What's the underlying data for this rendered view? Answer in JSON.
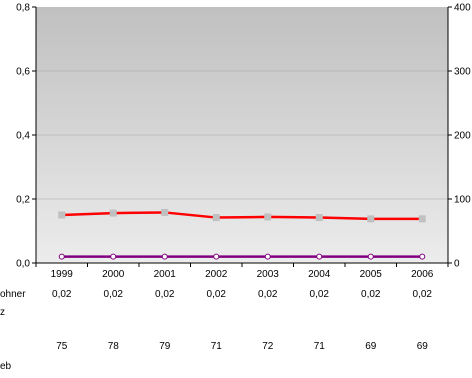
{
  "chart_data": {
    "type": "line",
    "categories": [
      "1999",
      "2000",
      "2001",
      "2002",
      "2003",
      "2004",
      "2005",
      "2006"
    ],
    "left_axis": {
      "ylim": [
        0,
        0.8
      ],
      "ticks": [
        "0,0",
        "0,2",
        "0,4",
        "0,6",
        "0,8"
      ]
    },
    "right_axis": {
      "ylim": [
        0,
        400
      ],
      "ticks": [
        "0",
        "100",
        "200",
        "300",
        "400"
      ]
    },
    "series": [
      {
        "axis": "left",
        "color": "#800080",
        "marker_color": "#ffffff",
        "values": [
          0.02,
          0.02,
          0.02,
          0.02,
          0.02,
          0.02,
          0.02,
          0.02
        ],
        "labels": [
          "0,02",
          "0,02",
          "0,02",
          "0,02",
          "0,02",
          "0,02",
          "0,02",
          "0,02"
        ]
      },
      {
        "axis": "right",
        "color": "#ff0000",
        "marker_color": "#c0c0c0",
        "values": [
          75,
          78,
          79,
          71,
          72,
          71,
          69,
          69
        ],
        "labels": [
          "75",
          "78",
          "79",
          "71",
          "72",
          "71",
          "69",
          "69"
        ]
      }
    ],
    "table_row_labels": [
      "ohner",
      "z",
      "eb"
    ],
    "grid": true,
    "plot_background": [
      "#c0c0c0",
      "#ececec"
    ]
  }
}
